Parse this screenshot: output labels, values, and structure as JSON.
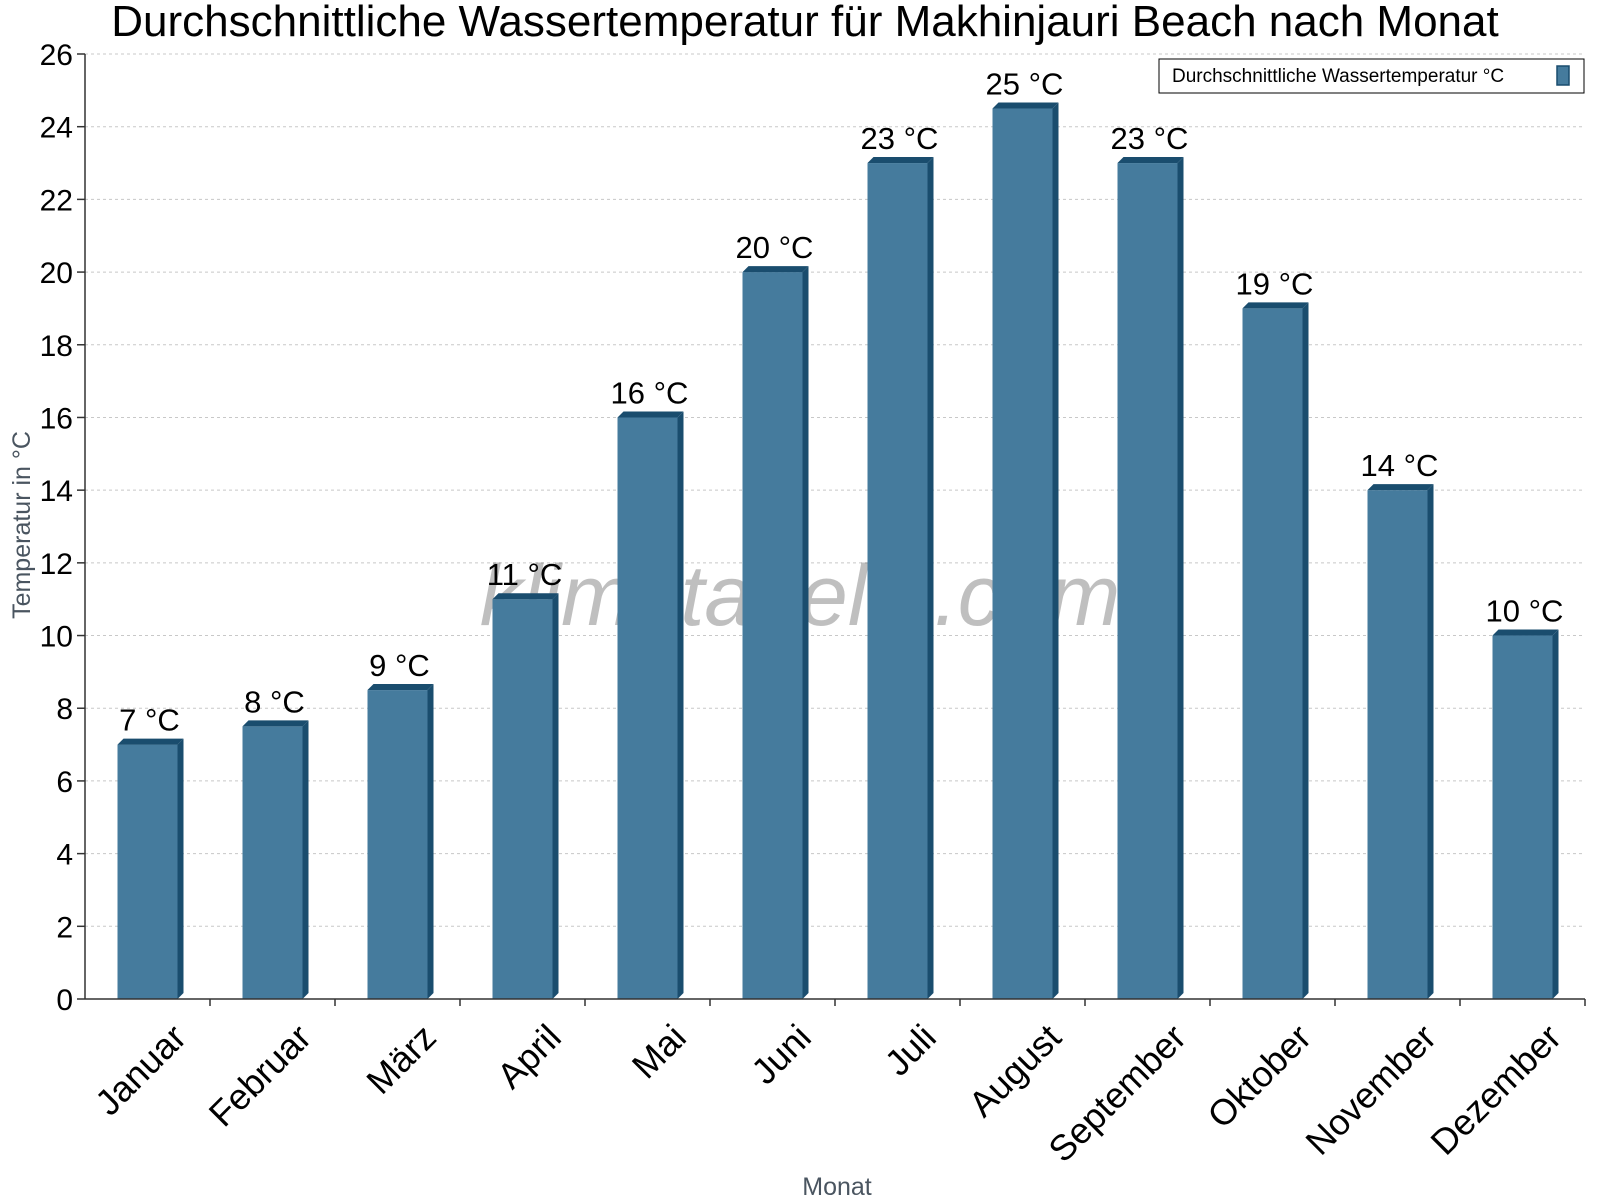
{
  "chart_data": {
    "type": "bar",
    "title": "Durchschnittliche Wassertemperatur für Makhinjauri Beach nach Monat",
    "xlabel": "Monat",
    "ylabel": "Temperatur in °C",
    "categories": [
      "Januar",
      "Februar",
      "März",
      "April",
      "Mai",
      "Juni",
      "Juli",
      "August",
      "September",
      "Oktober",
      "November",
      "Dezember"
    ],
    "series": [
      {
        "name": "Durchschnittliche Wassertemperatur °C",
        "values": [
          7,
          7.5,
          8.5,
          11,
          16,
          20,
          23,
          24.5,
          23,
          19,
          14,
          10
        ],
        "labels": [
          "7 °C",
          "8 °C",
          "9 °C",
          "11 °C",
          "16 °C",
          "20 °C",
          "23 °C",
          "25 °C",
          "23 °C",
          "19 °C",
          "14 °C",
          "10 °C"
        ],
        "color": "#457b9d",
        "edge_color": "#1a4d6e"
      }
    ],
    "ylim": [
      0,
      26
    ],
    "yticks": [
      0,
      2,
      4,
      6,
      8,
      10,
      12,
      14,
      16,
      18,
      20,
      22,
      24,
      26
    ],
    "grid": true,
    "legend_position": "top-right",
    "watermark": "klimatabelle.com"
  }
}
